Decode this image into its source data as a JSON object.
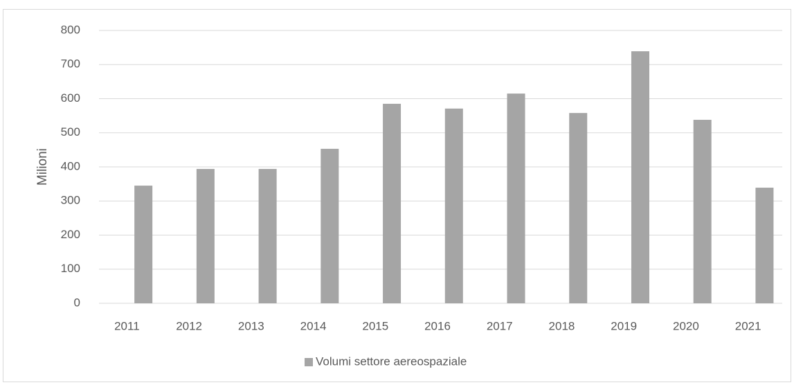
{
  "chart_data": {
    "type": "bar",
    "y_label": "Milioni",
    "categories": [
      "2011",
      "2012",
      "2013",
      "2014",
      "2015",
      "2016",
      "2017",
      "2018",
      "2019",
      "2020",
      "2021"
    ],
    "series": [
      {
        "name": "Volumi settore aereospaziale",
        "color": "#a5a5a5",
        "values": [
          345,
          394,
          394,
          453,
          585,
          571,
          615,
          558,
          739,
          538,
          339
        ]
      }
    ],
    "ylim": [
      0,
      800
    ],
    "yticks": [
      0,
      100,
      200,
      300,
      400,
      500,
      600,
      700,
      800
    ],
    "grid": true,
    "legend": "bottom"
  }
}
